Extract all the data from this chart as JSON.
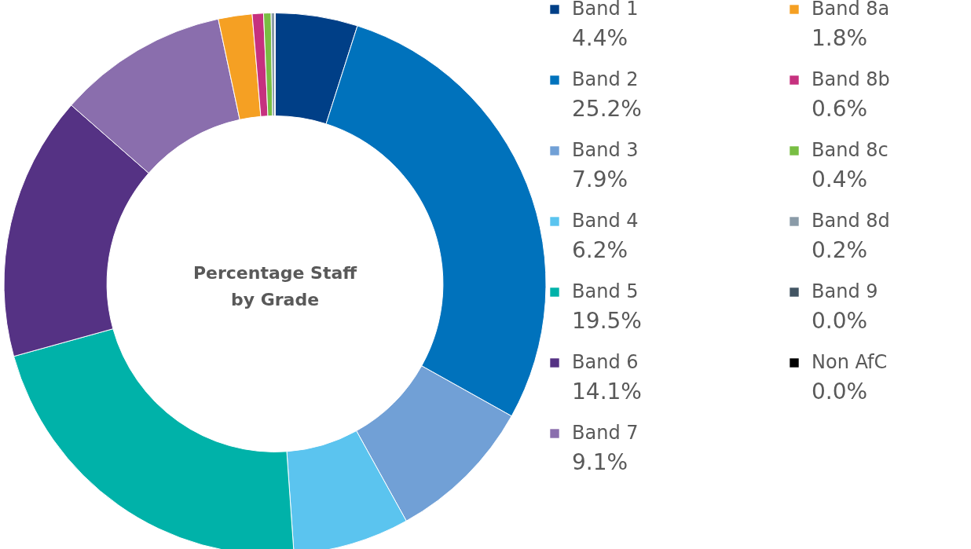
{
  "chart_data": {
    "type": "donut",
    "title": "Percentage Staff\nby Grade",
    "categories": [
      "Band 1",
      "Band 2",
      "Band 3",
      "Band 4",
      "Band 5",
      "Band 6",
      "Band 7",
      "Band 8a",
      "Band 8b",
      "Band 8c",
      "Band 8d",
      "Band 9",
      "Non AfC"
    ],
    "values": [
      4.4,
      25.2,
      7.9,
      6.2,
      19.5,
      14.1,
      9.1,
      1.8,
      0.6,
      0.4,
      0.2,
      0.0,
      0.0
    ],
    "value_labels": [
      "4.4%",
      "25.2%",
      "7.9%",
      "6.2%",
      "19.5%",
      "14.1%",
      "9.1%",
      "1.8%",
      "0.6%",
      "0.4%",
      "0.2%",
      "0.0%",
      "0.0%"
    ],
    "colors": [
      "#003f87",
      "#0072bc",
      "#71a0d6",
      "#5bc4ef",
      "#00b2a9",
      "#553284",
      "#8a6ead",
      "#f5a023",
      "#c6317f",
      "#78be43",
      "#8a9ba8",
      "#425563",
      "#000000"
    ],
    "legend": "right"
  }
}
